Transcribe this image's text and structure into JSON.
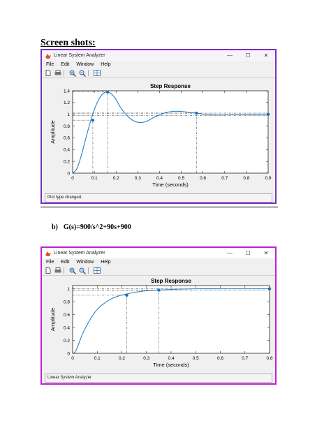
{
  "doc": {
    "heading": "Screen shots:",
    "sub_label": "b)",
    "sub_text": "G(s)=900/s^2+90s+900"
  },
  "windows": [
    {
      "title": "Linear System Analyzer",
      "menu": [
        "File",
        "Edit",
        "Window",
        "Help"
      ],
      "status": "Plot type changed.",
      "chart_data": {
        "type": "line",
        "title": "Step Response",
        "xlabel": "Time (seconds)",
        "ylabel": "Amplitude",
        "xlim": [
          0,
          0.9
        ],
        "ylim": [
          0,
          1.4
        ],
        "xticks": [
          0,
          0.1,
          0.2,
          0.3,
          0.4,
          0.5,
          0.6,
          0.7,
          0.8,
          0.9
        ],
        "yticks": [
          0,
          0.2,
          0.4,
          0.6,
          0.8,
          1,
          1.2,
          1.4
        ],
        "xtick_labels": [
          "0",
          "0.1",
          "0.2",
          "0.3",
          "0.4",
          "0.5",
          "0.6",
          "0.7",
          "0.8",
          "0.9"
        ],
        "ytick_labels": [
          "0",
          "0.2",
          "0.4",
          "0.6",
          "0.8",
          "1",
          "1.2",
          "1.4"
        ],
        "grid": false,
        "series": [
          {
            "x": [
              0,
              0.02,
              0.04,
              0.06,
              0.08,
              0.1,
              0.12,
              0.14,
              0.16,
              0.18,
              0.2,
              0.22,
              0.25,
              0.28,
              0.31,
              0.34,
              0.37,
              0.4,
              0.43,
              0.46,
              0.5,
              0.54,
              0.57,
              0.61,
              0.65,
              0.7,
              0.75,
              0.8,
              0.85,
              0.9
            ],
            "y": [
              0,
              0.08,
              0.3,
              0.58,
              0.85,
              1.08,
              1.25,
              1.35,
              1.38,
              1.34,
              1.25,
              1.12,
              0.98,
              0.89,
              0.86,
              0.88,
              0.94,
              0.99,
              1.03,
              1.05,
              1.05,
              1.03,
              1.02,
              1.0,
              0.99,
              0.99,
              1.0,
              1.0,
              1.0,
              1.0
            ]
          }
        ],
        "markers": [
          {
            "label": "rise",
            "x": 0.093,
            "y": 0.9
          },
          {
            "label": "peak",
            "x": 0.161,
            "y": 1.38
          },
          {
            "label": "settling",
            "x": 0.57,
            "y": 1.02
          },
          {
            "label": "steady state",
            "x": 0.9,
            "y": 1.0
          }
        ],
        "reference_lines": [
          1.02,
          0.98
        ]
      }
    },
    {
      "title": "Linear System Analyzer",
      "menu": [
        "File",
        "Edit",
        "Window",
        "Help"
      ],
      "status": "Linear System Analyzer",
      "chart_data": {
        "type": "line",
        "title": "Step Response",
        "xlabel": "Time (seconds)",
        "ylabel": "Amplitude",
        "xlim": [
          0,
          0.8
        ],
        "ylim": [
          0,
          1.05
        ],
        "xticks": [
          0,
          0.1,
          0.2,
          0.3,
          0.4,
          0.5,
          0.6,
          0.7,
          0.8
        ],
        "yticks": [
          0,
          0.2,
          0.4,
          0.6,
          0.8,
          1
        ],
        "xtick_labels": [
          "0",
          "0.1",
          "0.2",
          "0.3",
          "0.4",
          "0.5",
          "0.6",
          "0.7",
          "0.8"
        ],
        "ytick_labels": [
          "0",
          "0.2",
          "0.4",
          "0.6",
          "0.8",
          "1"
        ],
        "grid": false,
        "series": [
          {
            "x": [
              0,
              0.01,
              0.02,
              0.04,
              0.06,
              0.08,
              0.1,
              0.12,
              0.15,
              0.18,
              0.22,
              0.26,
              0.3,
              0.35,
              0.4,
              0.5,
              0.6,
              0.7,
              0.8
            ],
            "y": [
              0,
              0.02,
              0.1,
              0.3,
              0.45,
              0.58,
              0.68,
              0.75,
              0.83,
              0.88,
              0.92,
              0.95,
              0.97,
              0.98,
              0.99,
              1.0,
              1.0,
              1.0,
              1.0
            ]
          }
        ],
        "markers": [
          {
            "label": "rise",
            "x": 0.22,
            "y": 0.9
          },
          {
            "label": "settling",
            "x": 0.35,
            "y": 0.98
          },
          {
            "label": "steady state",
            "x": 0.8,
            "y": 1.0
          }
        ],
        "reference_lines": [
          1.0,
          0.98
        ]
      }
    }
  ],
  "colors": {
    "curve": "#2b7fc1",
    "marker": "#1f6fb2",
    "window1_border": "#7b2fbe",
    "window2_border": "#c21dd3"
  }
}
